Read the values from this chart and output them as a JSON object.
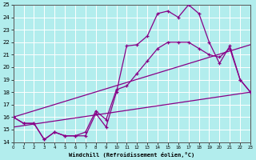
{
  "xlabel": "Windchill (Refroidissement éolien,°C)",
  "xlim": [
    0,
    23
  ],
  "ylim": [
    14,
    25
  ],
  "background_color": "#b2eded",
  "grid_color": "#aadddd",
  "line_color": "#880088",
  "line1_x": [
    0,
    1,
    2,
    3,
    4,
    5,
    6,
    7,
    8,
    9,
    10,
    11,
    12,
    13,
    14,
    15,
    16,
    17,
    18,
    19,
    20,
    21,
    22,
    23
  ],
  "line1_y": [
    16.0,
    15.5,
    15.5,
    14.2,
    14.8,
    14.5,
    14.5,
    14.5,
    16.3,
    15.2,
    18.0,
    21.7,
    21.8,
    22.5,
    24.3,
    24.5,
    24.0,
    25.0,
    24.3,
    22.0,
    20.3,
    21.7,
    19.0,
    18.0
  ],
  "line2_x": [
    0,
    1,
    2,
    3,
    4,
    5,
    6,
    7,
    8,
    9,
    10,
    11,
    12,
    13,
    14,
    15,
    16,
    17,
    18,
    19,
    20,
    21,
    22,
    23
  ],
  "line2_y": [
    16.0,
    15.5,
    15.5,
    14.2,
    14.8,
    14.5,
    14.5,
    14.8,
    16.5,
    15.8,
    18.2,
    18.5,
    19.5,
    20.5,
    21.5,
    22.0,
    22.0,
    22.0,
    21.5,
    21.0,
    20.8,
    21.5,
    19.0,
    18.0
  ],
  "line3_x": [
    0,
    23
  ],
  "line3_y": [
    16.0,
    21.8
  ],
  "line4_x": [
    0,
    23
  ],
  "line4_y": [
    15.2,
    18.0
  ]
}
